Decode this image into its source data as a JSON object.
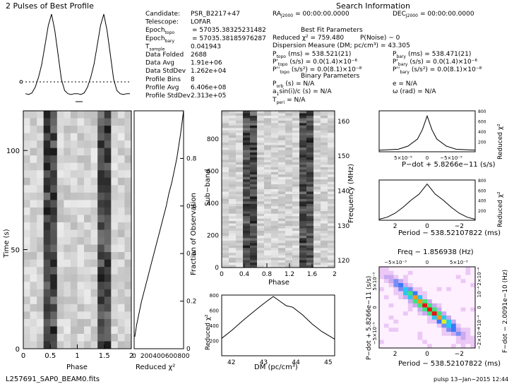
{
  "title": "2 Pulses of Best Profile",
  "header": {
    "section_title": "Search Information",
    "best_fit_title": "Best Fit Parameters",
    "binary_title": "Binary Parameters"
  },
  "info_left": [
    {
      "label": "Candidate:",
      "value": "PSR_B2217+47"
    },
    {
      "label": "Telescope:",
      "value": "LOFAR"
    },
    {
      "label": "Epoch",
      "sub": "topo",
      "value": "= 57035.38325231482"
    },
    {
      "label": "Epoch",
      "sub": "bary",
      "value": "= 57035.38185976287"
    },
    {
      "label": "T",
      "sub": "sample",
      "value": "0.041943"
    },
    {
      "label": "Data Folded",
      "value": "2688"
    },
    {
      "label": "Data Avg",
      "value": "1.91e+06"
    },
    {
      "label": "Data StdDev",
      "value": "1.262e+04"
    },
    {
      "label": "Profile Bins",
      "value": "8"
    },
    {
      "label": "Profile Avg",
      "value": "6.406e+08"
    },
    {
      "label": "Profile StdDev",
      "value": "2.313e+05"
    }
  ],
  "info_right": {
    "ra": "RA",
    "ra_sub": "J2000",
    "ra_value": "= 00:00:00.0000",
    "dec": "DEC",
    "dec_sub": "J2000",
    "dec_value": "= 00:00:00.0000",
    "reduced_chi": "Reduced χ² = 759.480",
    "pnoise": "P(Noise) ~ 0",
    "dm": "Dispersion Measure (DM; pc/cm³) = 43.305",
    "p_topo": "P",
    "p_topo_sub": "topo",
    "p_topo_value": "(ms)    =  538.521(21)",
    "p_bary": "P",
    "p_bary_sub": "bary",
    "p_bary_value": "(ms)    =  538.471(21)",
    "pd_topo": "P'",
    "pd_topo_sub": "topo",
    "pd_topo_value": "(s/s) = 0.0(1.4)×10⁻⁶",
    "pd_bary": "P'",
    "pd_bary_sub": "bary",
    "pd_bary_value": "(s/s) = 0.0(1.4)×10⁻⁶",
    "pdd_topo": "P''",
    "pdd_topo_sub": "topo",
    "pdd_topo_value": "(s/s²) = 0.0(8.1)×10⁻⁸",
    "pdd_bary": "P''",
    "pdd_bary_sub": "bary",
    "pdd_bary_value": "(s/s²) = 0.0(8.1)×10⁻⁸",
    "porb": "P",
    "porb_sub": "orb",
    "porb_value": "(s) = N/A",
    "e": "e = N/A",
    "asini": "a",
    "asini_sub": "1",
    "asini_value": "sin(i)/c (s) = N/A",
    "omega": "ω (rad) = N/A",
    "tperi": "T",
    "tperi_sub": "peri",
    "tperi_value": "= N/A"
  },
  "panels": {
    "time_phase": {
      "xlabel": "Phase",
      "ylabel": "Time (s)",
      "xticks": [
        "0",
        "0.5",
        "1",
        "1.5",
        "2"
      ],
      "yticks": [
        "0",
        "50",
        "100"
      ]
    },
    "chi_vs_time": {
      "xlabel": "Reduced χ²",
      "xticks": [
        "0",
        "200",
        "400",
        "600",
        "800"
      ],
      "ylabel_right": "Fraction of Observation",
      "yticks_right": [
        "0",
        "0.2",
        "0.4",
        "0.6",
        "0.8"
      ]
    },
    "subband": {
      "xlabel": "Phase",
      "ylabel": "Sub−band",
      "ylabel_right": "Frequency (MHz)",
      "xticks": [
        "0",
        "0.4",
        "0.8",
        "1.2",
        "1.6",
        "2"
      ],
      "yticks": [
        "0",
        "200",
        "400",
        "600",
        "800"
      ],
      "yticks_right": [
        "120",
        "130",
        "140",
        "150",
        "160"
      ]
    },
    "dm_curve": {
      "xlabel": "DM (pc/cm³)",
      "ylabel": "Reduced χ²",
      "xticks": [
        "42",
        "43",
        "44",
        "45"
      ],
      "yticks": [
        "200",
        "400",
        "600",
        "800"
      ]
    },
    "pdot_curve": {
      "xlabel": "P−dot + 5.8266e−11 (s/s)",
      "ylabel_right": "Reduced χ²",
      "xticks": [
        "5×10⁻⁵",
        "0",
        "−5×10⁻⁵"
      ],
      "yticks": [
        "200",
        "400",
        "600",
        "800"
      ]
    },
    "period_curve": {
      "xlabel": "Period − 538.52107822 (ms)",
      "ylabel_right": "Reduced χ²",
      "xticks": [
        "2",
        "0",
        "−2"
      ],
      "yticks": [
        "200",
        "400",
        "600",
        "800"
      ]
    },
    "pp_dot": {
      "top_label": "Freq − 1.856938 (Hz)",
      "xlabel": "Period − 538.52107822 (ms)",
      "ylabel": "P−dot + 5.8266e−11 (s/s)",
      "ylabel_right": "F−dot − 2.0091e−10 (Hz)",
      "xticks": [
        "2",
        "0",
        "−2"
      ],
      "top_ticks": [
        "−5×10⁻³",
        "0",
        "5×10⁻³"
      ],
      "yticks": [
        "5×10⁻⁵",
        "0",
        "−5×10⁻⁵"
      ],
      "yticks_right": [
        "2×10⁻⁴",
        "10⁻⁴",
        "0",
        "−10⁻⁴",
        "−2×10⁻⁴"
      ]
    }
  },
  "footer": {
    "filename": "L257691_SAP0_BEAM0.fits",
    "stamp": "pulsp  13−Jan−2015 12:44"
  },
  "chart_data": [
    {
      "type": "line",
      "title": "2 Pulses of Best Profile",
      "x": [
        0,
        0.0625,
        0.125,
        0.1875,
        0.25,
        0.3125,
        0.375,
        0.4375,
        0.5,
        0.5625,
        0.625,
        0.6875,
        0.75,
        0.8125,
        0.875,
        0.9375,
        1.0,
        1.0625,
        1.125,
        1.1875,
        1.25,
        1.3125,
        1.375,
        1.4375,
        1.5,
        1.5625,
        1.625,
        1.6875,
        1.75,
        1.8125,
        1.875,
        1.9375,
        2.0
      ],
      "values": [
        0.02,
        0.01,
        0.03,
        0.1,
        0.22,
        0.38,
        0.62,
        0.86,
        1.0,
        0.8,
        0.5,
        0.2,
        0.06,
        0.02,
        0.01,
        0.02,
        0.02,
        0.01,
        0.03,
        0.1,
        0.22,
        0.38,
        0.62,
        0.86,
        1.0,
        0.8,
        0.5,
        0.2,
        0.06,
        0.02,
        0.01,
        0.02,
        0.02
      ]
    },
    {
      "type": "heatmap",
      "xlabel": "Phase",
      "ylabel": "Time (s)",
      "xlim": [
        0,
        2
      ],
      "ylim": [
        0,
        120
      ],
      "rows": 32,
      "cols": 16,
      "pulse_phases": [
        0.5,
        1.5
      ]
    },
    {
      "type": "line",
      "xlabel": "Reduced χ²",
      "ylabel": "Fraction of Observation",
      "xlim": [
        0,
        800
      ],
      "ylim": [
        0,
        1
      ],
      "x": [
        800,
        775,
        750,
        720,
        690,
        650,
        610,
        560,
        520,
        470,
        420,
        370,
        320,
        270,
        220,
        170,
        120,
        80,
        40,
        10
      ],
      "y": [
        1.0,
        0.95,
        0.9,
        0.85,
        0.8,
        0.75,
        0.7,
        0.65,
        0.6,
        0.55,
        0.5,
        0.45,
        0.4,
        0.35,
        0.3,
        0.25,
        0.2,
        0.15,
        0.1,
        0.05
      ]
    },
    {
      "type": "heatmap",
      "xlabel": "Phase",
      "ylabel": "Sub−band",
      "xlim": [
        0,
        2
      ],
      "ylim": [
        0,
        976
      ],
      "freq_range_mhz": [
        118,
        163
      ],
      "rows": 64,
      "cols": 16,
      "pulse_phases": [
        0.5,
        1.5
      ]
    },
    {
      "type": "line",
      "xlabel": "DM (pc/cm³)",
      "ylabel": "Reduced χ²",
      "xlim": [
        41.7,
        45.2
      ],
      "ylim": [
        0,
        800
      ],
      "x": [
        41.7,
        42.0,
        42.4,
        42.8,
        43.1,
        43.3,
        43.5,
        43.7,
        43.9,
        44.2,
        44.5,
        44.8,
        45.2
      ],
      "y": [
        230,
        330,
        480,
        620,
        720,
        780,
        720,
        660,
        640,
        540,
        420,
        320,
        220
      ]
    },
    {
      "type": "line",
      "xlabel": "P−dot + 5.8266e−11 (s/s)",
      "ylabel": "Reduced χ²",
      "xlim": [
        0.0001,
        -0.0001
      ],
      "ylim": [
        0,
        800
      ],
      "x": [
        0.0001,
        6e-05,
        4e-05,
        2e-05,
        1e-05,
        0,
        -1e-05,
        -2e-05,
        -4e-05,
        -6e-05,
        -0.0001
      ],
      "y": [
        30,
        50,
        110,
        250,
        430,
        700,
        430,
        250,
        110,
        50,
        30
      ]
    },
    {
      "type": "line",
      "xlabel": "Period − 538.52107822 (ms)",
      "ylabel": "Reduced χ²",
      "xlim": [
        3,
        -3
      ],
      "ylim": [
        0,
        800
      ],
      "x": [
        3,
        2.5,
        2,
        1.5,
        1,
        0.5,
        0,
        -0.5,
        -1,
        -1.5,
        -2,
        -2.5,
        -3
      ],
      "y": [
        20,
        60,
        140,
        260,
        400,
        520,
        720,
        520,
        400,
        260,
        140,
        60,
        20
      ]
    },
    {
      "type": "heatmap",
      "xlabel": "Period − 538.52107822 (ms)",
      "ylabel": "P−dot + 5.8266e−11 (s/s)",
      "xlim": [
        3,
        -3
      ],
      "ylim": [
        -0.0001,
        0.0001
      ],
      "rows": 20,
      "cols": 20
    }
  ]
}
